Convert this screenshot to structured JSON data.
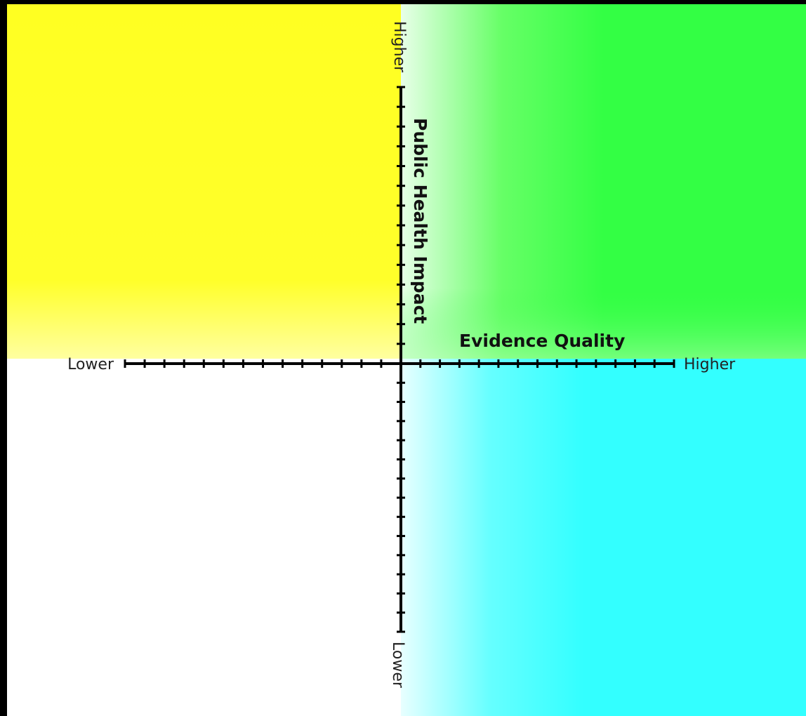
{
  "diagram": {
    "x_axis": {
      "title": "Evidence Quality",
      "low_label": "Lower",
      "high_label": "Higher",
      "ticks_per_side": 14
    },
    "y_axis": {
      "title": "Public Health Impact",
      "low_label": "Lower",
      "high_label": "Higher",
      "ticks_per_side": 14
    },
    "quadrants": {
      "top_left": {
        "color": "#ffff22"
      },
      "top_right": {
        "color": "#33ff44"
      },
      "bottom_left": {
        "color": "#ffffff"
      },
      "bottom_right": {
        "color": "#33ffff"
      }
    },
    "border_color": "#000000",
    "axis_color": "#000000"
  }
}
